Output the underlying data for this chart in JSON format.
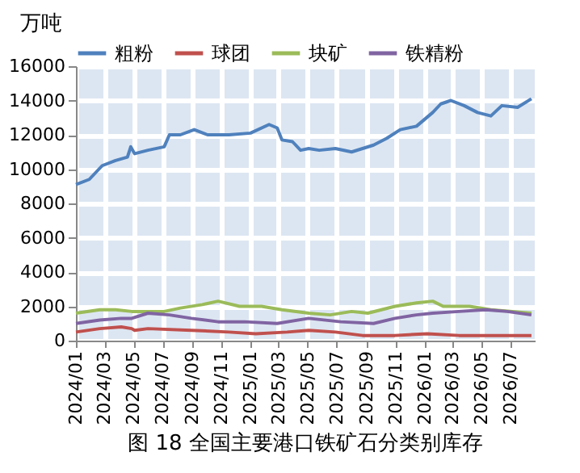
{
  "chart_data": {
    "type": "line",
    "title": "图 18 全国主要港口铁矿石分类别库存",
    "ylabel": "万吨",
    "xlim": [
      "2024-01-01",
      "2026-08-20"
    ],
    "xticks": [
      {
        "value": "2024-01-01",
        "label": "2024/01"
      },
      {
        "value": "2024-03-01",
        "label": "2024/03"
      },
      {
        "value": "2024-05-01",
        "label": "2024/05"
      },
      {
        "value": "2024-07-01",
        "label": "2024/07"
      },
      {
        "value": "2024-09-01",
        "label": "2024/09"
      },
      {
        "value": "2024-11-01",
        "label": "2024/11"
      },
      {
        "value": "2025-01-01",
        "label": "2025/01"
      },
      {
        "value": "2025-03-01",
        "label": "2025/03"
      },
      {
        "value": "2025-05-01",
        "label": "2025/05"
      },
      {
        "value": "2025-07-01",
        "label": "2025/07"
      },
      {
        "value": "2025-09-01",
        "label": "2025/09"
      },
      {
        "value": "2025-11-01",
        "label": "2025/11"
      },
      {
        "value": "2026-01-01",
        "label": "2026/01"
      },
      {
        "value": "2026-03-01",
        "label": "2026/03"
      },
      {
        "value": "2026-05-01",
        "label": "2026/05"
      },
      {
        "value": "2026-07-01",
        "label": "2026/07"
      }
    ],
    "ylim": [
      0,
      16000
    ],
    "yticks": [
      0,
      2000,
      4000,
      6000,
      8000,
      10000,
      12000,
      14000,
      16000
    ],
    "grid": true,
    "legend": "top",
    "marker": "none",
    "line_style": "solid",
    "series": [
      {
        "name": "粗粉",
        "color": "#4f81bd",
        "x": [
          "2024-01-01",
          "2024-01-29",
          "2024-02-25",
          "2024-03-24",
          "2024-04-18",
          "2024-04-25",
          "2024-05-03",
          "2024-05-31",
          "2024-07-04",
          "2024-07-15",
          "2024-08-07",
          "2024-09-05",
          "2024-10-03",
          "2024-11-17",
          "2025-01-01",
          "2025-02-09",
          "2025-02-26",
          "2025-03-08",
          "2025-03-30",
          "2025-04-16",
          "2025-05-03",
          "2025-05-25",
          "2025-06-28",
          "2025-08-01",
          "2025-09-16",
          "2025-10-14",
          "2025-11-11",
          "2025-12-15",
          "2026-01-18",
          "2026-02-04",
          "2026-02-25",
          "2026-03-25",
          "2026-04-22",
          "2026-05-20",
          "2026-06-12",
          "2026-07-15",
          "2026-08-13"
        ],
        "values": [
          9100,
          9400,
          10200,
          10500,
          10700,
          11300,
          10900,
          11100,
          11300,
          12000,
          12000,
          12300,
          12000,
          12000,
          12100,
          12600,
          12400,
          11700,
          11600,
          11100,
          11200,
          11100,
          11200,
          11000,
          11400,
          11800,
          12300,
          12500,
          13300,
          13800,
          14000,
          13700,
          13300,
          13100,
          13700,
          13600,
          14100
        ]
      },
      {
        "name": "球团",
        "color": "#c0504d",
        "x": [
          "2024-01-01",
          "2024-02-20",
          "2024-04-05",
          "2024-04-27",
          "2024-05-03",
          "2024-05-31",
          "2024-08-30",
          "2024-11-17",
          "2025-01-12",
          "2025-03-19",
          "2025-05-03",
          "2025-06-28",
          "2025-08-24",
          "2025-10-31",
          "2026-01-07",
          "2026-03-14",
          "2026-05-20",
          "2026-08-13"
        ],
        "values": [
          500,
          700,
          800,
          700,
          600,
          700,
          600,
          500,
          400,
          500,
          600,
          500,
          300,
          300,
          400,
          300,
          300,
          300
        ]
      },
      {
        "name": "块矿",
        "color": "#9bbb59",
        "x": [
          "2024-01-01",
          "2024-02-20",
          "2024-03-24",
          "2024-04-27",
          "2024-05-31",
          "2024-07-04",
          "2024-08-07",
          "2024-09-22",
          "2024-10-25",
          "2024-12-09",
          "2025-01-24",
          "2025-03-08",
          "2025-05-03",
          "2025-06-17",
          "2025-08-01",
          "2025-09-04",
          "2025-10-31",
          "2025-12-15",
          "2026-01-18",
          "2026-02-09",
          "2026-04-05",
          "2026-05-20",
          "2026-07-04",
          "2026-08-13"
        ],
        "values": [
          1600,
          1800,
          1800,
          1700,
          1700,
          1700,
          1900,
          2100,
          2300,
          2000,
          2000,
          1800,
          1600,
          1500,
          1700,
          1600,
          2000,
          2200,
          2300,
          2000,
          2000,
          1800,
          1700,
          1600
        ]
      },
      {
        "name": "铁精粉",
        "color": "#8064a2",
        "x": [
          "2024-01-01",
          "2024-02-20",
          "2024-04-05",
          "2024-04-27",
          "2024-05-31",
          "2024-07-15",
          "2024-08-30",
          "2024-10-25",
          "2024-12-20",
          "2025-02-26",
          "2025-05-03",
          "2025-07-09",
          "2025-09-16",
          "2025-10-31",
          "2025-12-15",
          "2026-01-18",
          "2026-03-14",
          "2026-05-09",
          "2026-06-23",
          "2026-08-13"
        ],
        "values": [
          1000,
          1200,
          1300,
          1300,
          1600,
          1500,
          1300,
          1100,
          1100,
          1000,
          1300,
          1100,
          1000,
          1300,
          1500,
          1600,
          1700,
          1800,
          1700,
          1500
        ]
      }
    ]
  }
}
